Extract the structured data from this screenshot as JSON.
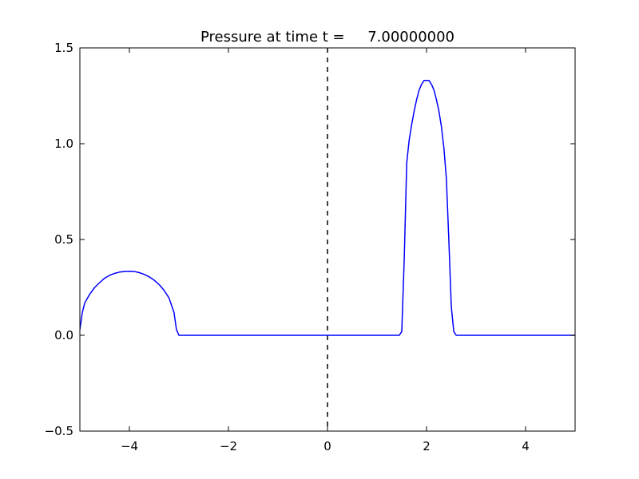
{
  "chart_data": {
    "type": "line",
    "title": "Pressure at time t =     7.00000000",
    "xlabel": "",
    "ylabel": "",
    "xlim": [
      -5,
      5
    ],
    "ylim": [
      -0.5,
      1.5
    ],
    "grid": false,
    "x_ticks": [
      -4,
      -2,
      0,
      2,
      4
    ],
    "x_tick_labels": [
      "−4",
      "−2",
      "0",
      "2",
      "4"
    ],
    "y_ticks": [
      -0.5,
      0.0,
      0.5,
      1.0,
      1.5
    ],
    "y_tick_labels": [
      "−0.5",
      "0.0",
      "0.5",
      "1.0",
      "1.5"
    ],
    "reference_lines": [
      {
        "orientation": "vertical",
        "x": 0,
        "style": "dashed",
        "color": "#000000"
      }
    ],
    "series": [
      {
        "color": "#0000ff",
        "x": [
          -5.0,
          -4.95,
          -4.9,
          -4.8,
          -4.7,
          -4.6,
          -4.5,
          -4.4,
          -4.3,
          -4.2,
          -4.1,
          -4.0,
          -3.9,
          -3.8,
          -3.7,
          -3.6,
          -3.5,
          -3.4,
          -3.3,
          -3.2,
          -3.1,
          -3.05,
          -3.0,
          -2.9,
          -2.5,
          -2.0,
          -1.0,
          0.0,
          1.0,
          1.4,
          1.45,
          1.5,
          1.55,
          1.6,
          1.65,
          1.7,
          1.75,
          1.8,
          1.85,
          1.9,
          1.95,
          2.0,
          2.05,
          2.1,
          2.15,
          2.2,
          2.25,
          2.3,
          2.35,
          2.4,
          2.45,
          2.5,
          2.55,
          2.6,
          2.7,
          3.0,
          4.0,
          5.0
        ],
        "y": [
          0.03,
          0.12,
          0.17,
          0.215,
          0.25,
          0.275,
          0.298,
          0.313,
          0.323,
          0.33,
          0.333,
          0.334,
          0.333,
          0.327,
          0.318,
          0.305,
          0.288,
          0.265,
          0.235,
          0.195,
          0.12,
          0.03,
          0.0,
          0.0,
          0.0,
          0.0,
          0.0,
          0.0,
          0.0,
          0.0,
          0.0,
          0.02,
          0.4,
          0.9,
          1.02,
          1.1,
          1.17,
          1.23,
          1.28,
          1.31,
          1.33,
          1.33,
          1.33,
          1.31,
          1.28,
          1.23,
          1.17,
          1.09,
          0.98,
          0.82,
          0.5,
          0.15,
          0.02,
          0.0,
          0.0,
          0.0,
          0.0,
          0.0
        ]
      }
    ]
  }
}
